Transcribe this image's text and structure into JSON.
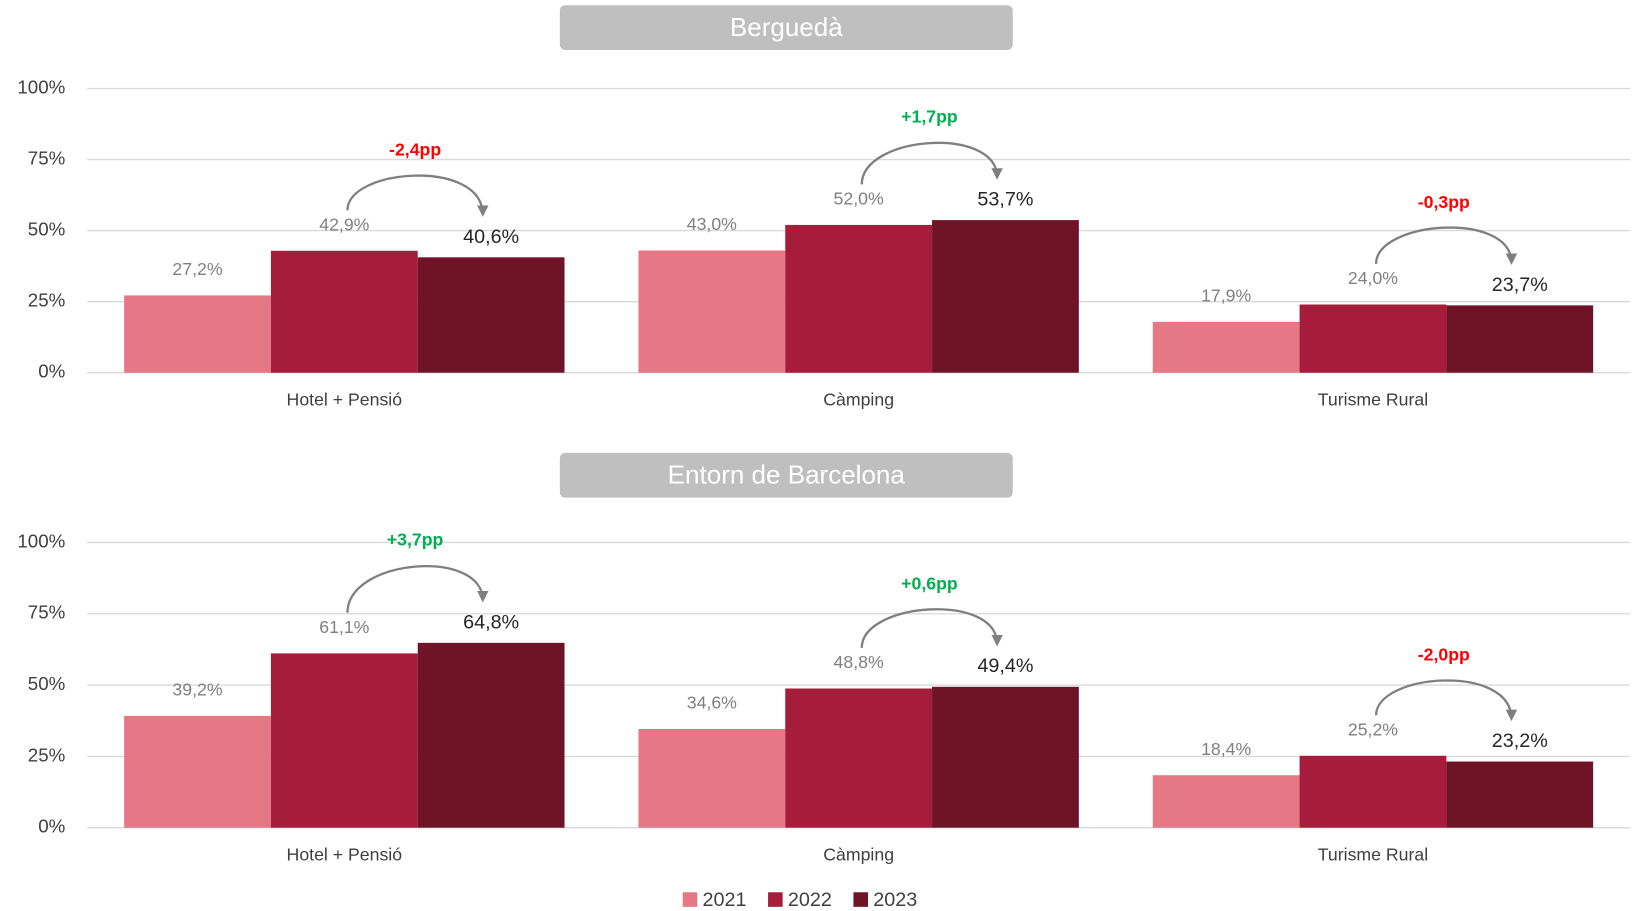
{
  "chart_data": [
    {
      "type": "bar",
      "title": "Berguedà",
      "categories": [
        "Hotel + Pensió",
        "Càmping",
        "Turisme Rural"
      ],
      "series": [
        {
          "name": "2021",
          "color": "#e57884",
          "values": [
            27.2,
            43.0,
            17.9
          ],
          "value_labels": [
            "27,2%",
            "43,0%",
            "17,9%"
          ]
        },
        {
          "name": "2022",
          "color": "#a51d3a",
          "values": [
            42.9,
            52.0,
            24.0
          ],
          "value_labels": [
            "42,9%",
            "52,0%",
            "24,0%"
          ]
        },
        {
          "name": "2023",
          "color": "#6e1426",
          "values": [
            40.6,
            53.7,
            23.7
          ],
          "value_labels": [
            "40,6%",
            "53,7%",
            "23,7%"
          ]
        }
      ],
      "annotations": [
        {
          "text": "-2,4pp",
          "color": "#ff0000"
        },
        {
          "text": "+1,7pp",
          "color": "#00b050"
        },
        {
          "text": "-0,3pp",
          "color": "#ff0000"
        }
      ],
      "ylim": [
        0,
        100
      ],
      "yticks": [
        {
          "value": 0,
          "label": "0%"
        },
        {
          "value": 25,
          "label": "25%"
        },
        {
          "value": 50,
          "label": "50%"
        },
        {
          "value": 75,
          "label": "75%"
        },
        {
          "value": 100,
          "label": "100%"
        }
      ],
      "grid": true
    },
    {
      "type": "bar",
      "title": "Entorn de Barcelona",
      "categories": [
        "Hotel + Pensió",
        "Càmping",
        "Turisme Rural"
      ],
      "series": [
        {
          "name": "2021",
          "color": "#e57884",
          "values": [
            39.2,
            34.6,
            18.4
          ],
          "value_labels": [
            "39,2%",
            "34,6%",
            "18,4%"
          ]
        },
        {
          "name": "2022",
          "color": "#a51d3a",
          "values": [
            61.1,
            48.8,
            25.2
          ],
          "value_labels": [
            "61,1%",
            "48,8%",
            "25,2%"
          ]
        },
        {
          "name": "2023",
          "color": "#6e1426",
          "values": [
            64.8,
            49.4,
            23.2
          ],
          "value_labels": [
            "64,8%",
            "49,4%",
            "23,2%"
          ]
        }
      ],
      "annotations": [
        {
          "text": "+3,7pp",
          "color": "#00b050"
        },
        {
          "text": "+0,6pp",
          "color": "#00b050"
        },
        {
          "text": "-2,0pp",
          "color": "#ff0000"
        }
      ],
      "ylim": [
        0,
        100
      ],
      "yticks": [
        {
          "value": 0,
          "label": "0%"
        },
        {
          "value": 25,
          "label": "25%"
        },
        {
          "value": 50,
          "label": "50%"
        },
        {
          "value": 75,
          "label": "75%"
        },
        {
          "value": 100,
          "label": "100%"
        }
      ],
      "grid": true
    }
  ]
}
